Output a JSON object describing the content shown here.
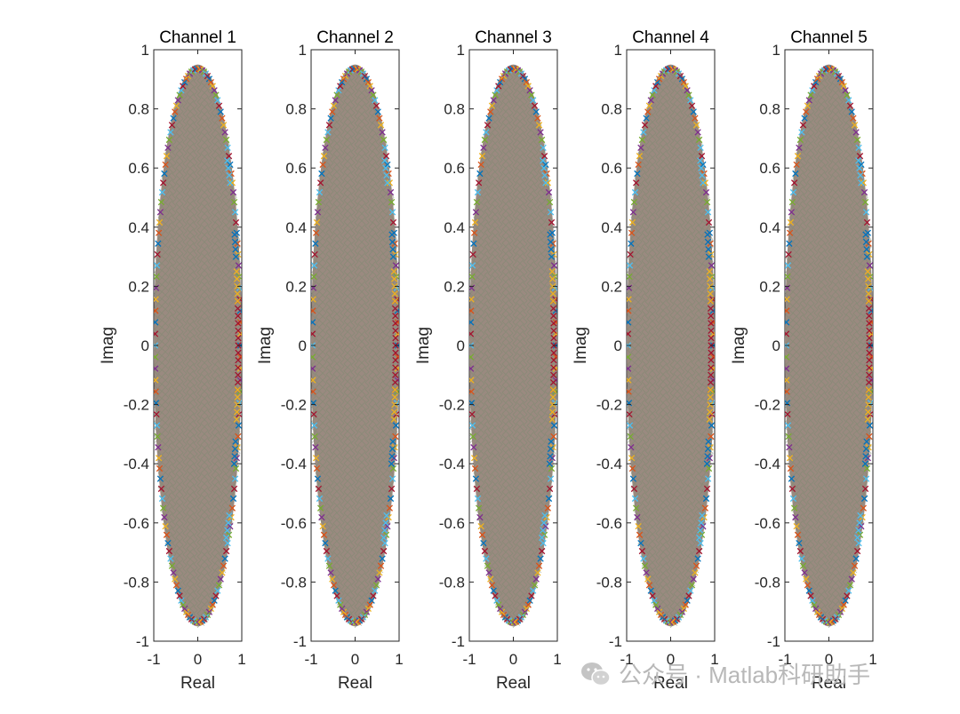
{
  "chart_data": [
    {
      "type": "scatter",
      "title": "Channel 1",
      "xlabel": "Real",
      "ylabel": "Imag",
      "xlim": [
        -1,
        1
      ],
      "ylim": [
        -1,
        1
      ],
      "xticks": [
        "-1",
        "0",
        "1"
      ],
      "yticks": [
        "-1",
        "-0.8",
        "-0.6",
        "-0.4",
        "-0.2",
        "0",
        "0.2",
        "0.4",
        "0.6",
        "0.8",
        "1"
      ],
      "marker": "x",
      "shape": "ellipse",
      "real_range": [
        -1,
        1
      ],
      "imag_range": [
        -0.95,
        0.95
      ]
    },
    {
      "type": "scatter",
      "title": "Channel 2",
      "xlabel": "Real",
      "ylabel": "Imag",
      "xlim": [
        -1,
        1
      ],
      "ylim": [
        -1,
        1
      ],
      "xticks": [
        "-1",
        "0",
        "1"
      ],
      "yticks": [
        "-1",
        "-0.8",
        "-0.6",
        "-0.4",
        "-0.2",
        "0",
        "0.2",
        "0.4",
        "0.6",
        "0.8",
        "1"
      ],
      "marker": "x",
      "shape": "ellipse",
      "real_range": [
        -1,
        1
      ],
      "imag_range": [
        -0.95,
        0.95
      ]
    },
    {
      "type": "scatter",
      "title": "Channel 3",
      "xlabel": "Real",
      "ylabel": "Imag",
      "xlim": [
        -1,
        1
      ],
      "ylim": [
        -1,
        1
      ],
      "xticks": [
        "-1",
        "0",
        "1"
      ],
      "yticks": [
        "-1",
        "-0.8",
        "-0.6",
        "-0.4",
        "-0.2",
        "0",
        "0.2",
        "0.4",
        "0.6",
        "0.8",
        "1"
      ],
      "marker": "x",
      "shape": "ellipse",
      "real_range": [
        -1,
        1
      ],
      "imag_range": [
        -0.95,
        0.95
      ]
    },
    {
      "type": "scatter",
      "title": "Channel 4",
      "xlabel": "Real",
      "ylabel": "Imag",
      "xlim": [
        -1,
        1
      ],
      "ylim": [
        -1,
        1
      ],
      "xticks": [
        "-1",
        "0",
        "1"
      ],
      "yticks": [
        "-1",
        "-0.8",
        "-0.6",
        "-0.4",
        "-0.2",
        "0",
        "0.2",
        "0.4",
        "0.6",
        "0.8",
        "1"
      ],
      "marker": "x",
      "shape": "ellipse",
      "real_range": [
        -1,
        1
      ],
      "imag_range": [
        -0.95,
        0.95
      ]
    },
    {
      "type": "scatter",
      "title": "Channel 5",
      "xlabel": "Real",
      "ylabel": "Imag",
      "xlim": [
        -1,
        1
      ],
      "ylim": [
        -1,
        1
      ],
      "xticks": [
        "-1",
        "0",
        "1"
      ],
      "yticks": [
        "-1",
        "-0.8",
        "-0.6",
        "-0.4",
        "-0.2",
        "0",
        "0.2",
        "0.4",
        "0.6",
        "0.8",
        "1"
      ],
      "marker": "x",
      "shape": "ellipse",
      "real_range": [
        -1,
        1
      ],
      "imag_range": [
        -0.95,
        0.95
      ]
    }
  ],
  "series_colors": [
    "#0072BD",
    "#D95319",
    "#EDB120",
    "#7E2F8E",
    "#77AC30",
    "#4DBEEE",
    "#A2142F"
  ],
  "fill_color": "#9a8a80",
  "watermark": {
    "icon": "wechat-logo",
    "text": "公众号 · Matlab科研助手"
  }
}
